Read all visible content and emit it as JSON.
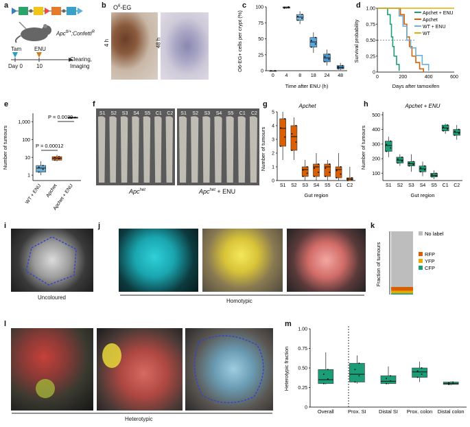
{
  "panels": {
    "a": {
      "label": "a",
      "genotype": "Apc",
      "genotype_sup": "fl/+",
      "genotype_suffix": ";Confetti",
      "genotype_suffix_sup": "R",
      "tam": "Tam",
      "enu": "ENU",
      "day_label": "Day 0",
      "day_value": "10",
      "step": "Clearing,",
      "step2": "Imaging"
    },
    "b": {
      "label": "b",
      "title": "O",
      "title_sup": "6",
      "title_suffix": "-EG",
      "time1": "4 h",
      "time2": "48 h"
    },
    "c": {
      "label": "c"
    },
    "d": {
      "label": "d"
    },
    "e": {
      "label": "e"
    },
    "f": {
      "label": "f",
      "left_caption": "Apc",
      "left_caption_sup": "het",
      "right_caption": "Apc",
      "right_caption_sup": "het",
      "right_caption_suffix": " + ENU",
      "regions": [
        "S1",
        "S2",
        "S3",
        "S4",
        "S5",
        "C1",
        "C2"
      ]
    },
    "g": {
      "label": "g"
    },
    "h": {
      "label": "h"
    },
    "i": {
      "label": "i",
      "caption": "Uncoloured"
    },
    "j": {
      "label": "j",
      "caption": "Homotypic"
    },
    "k": {
      "label": "k"
    },
    "l": {
      "label": "l",
      "caption": "Heterotypic"
    },
    "m": {
      "label": "m"
    }
  },
  "chart_data": [
    {
      "id": "c",
      "type": "box",
      "ylabel": "O6-EG+ cells per crypt (%)",
      "xlabel": "Time after ENU (h)",
      "categories": [
        "0",
        "4",
        "8",
        "18",
        "24",
        "48"
      ],
      "yticks": [
        0,
        25,
        50,
        75,
        100
      ],
      "ylim": [
        0,
        100
      ],
      "medians": [
        0,
        99,
        84,
        45,
        20,
        5
      ],
      "q1": [
        0,
        98,
        79,
        37,
        14,
        3
      ],
      "q3": [
        0,
        100,
        88,
        52,
        26,
        8
      ],
      "min": [
        0,
        97,
        73,
        28,
        8,
        1
      ],
      "max": [
        0,
        100,
        93,
        60,
        33,
        12
      ],
      "colors": [
        "#ffffff",
        "#b9d9f0",
        "#7ab8e0",
        "#5aa6d6",
        "#4a98cf",
        "#3a8cc8"
      ]
    },
    {
      "id": "d",
      "type": "line",
      "ylabel": "Survival probability",
      "xlabel": "Days after tamoxifen",
      "xticks": [
        0,
        200,
        400,
        600
      ],
      "yticks": [
        "0",
        "0.25",
        "0.50",
        "0.75",
        "1.00"
      ],
      "xlim": [
        0,
        600
      ],
      "ylim": [
        0,
        1
      ],
      "series": [
        {
          "name": "Apchet + ENU",
          "color": "#1b9e77",
          "points": [
            [
              0,
              1
            ],
            [
              60,
              1
            ],
            [
              80,
              0.9
            ],
            [
              100,
              0.75
            ],
            [
              110,
              0.55
            ],
            [
              120,
              0.4
            ],
            [
              130,
              0.25
            ],
            [
              150,
              0.12
            ],
            [
              170,
              0.02
            ]
          ]
        },
        {
          "name": "Apchet",
          "color": "#d95f02",
          "points": [
            [
              0,
              1
            ],
            [
              150,
              1
            ],
            [
              180,
              0.9
            ],
            [
              210,
              0.75
            ],
            [
              230,
              0.55
            ],
            [
              250,
              0.4
            ],
            [
              270,
              0.25
            ],
            [
              300,
              0.15
            ],
            [
              330,
              0.05
            ],
            [
              360,
              0
            ]
          ]
        },
        {
          "name": "WT + ENU",
          "color": "#6baed6",
          "points": [
            [
              0,
              1
            ],
            [
              140,
              1
            ],
            [
              170,
              0.88
            ],
            [
              200,
              0.72
            ],
            [
              230,
              0.5
            ],
            [
              260,
              0.38
            ],
            [
              300,
              0.26
            ],
            [
              350,
              0.12
            ],
            [
              400,
              0.02
            ]
          ]
        },
        {
          "name": "WT",
          "color": "#e6ab02",
          "points": [
            [
              0,
              1
            ],
            [
              600,
              1
            ]
          ]
        }
      ]
    },
    {
      "id": "e",
      "type": "box",
      "ylabel": "Number of tumours",
      "categories": [
        "WT + ENU",
        "Apchet",
        "Apchet + ENU"
      ],
      "yticks": [
        "1",
        "10",
        "100",
        "1,000"
      ],
      "scale": "log",
      "ylim": [
        0.5,
        3000
      ],
      "medians": [
        2.5,
        9,
        1700
      ],
      "q1": [
        1.5,
        7,
        1600
      ],
      "q3": [
        3.5,
        11,
        1800
      ],
      "min": [
        1,
        6,
        1550
      ],
      "max": [
        6,
        14,
        1850
      ],
      "colors": [
        "#6baed6",
        "#d95f02",
        "#1b9e77"
      ],
      "annotations": [
        "P = 0.00012",
        "P = 0.0039"
      ]
    },
    {
      "id": "g",
      "type": "box",
      "title": "Apchet",
      "ylabel": "Number of tumours",
      "xlabel": "Gut region",
      "categories": [
        "S1",
        "S2",
        "S3",
        "S4",
        "S5",
        "C1",
        "C2"
      ],
      "yticks": [
        0,
        1,
        2,
        3,
        4,
        5
      ],
      "ylim": [
        0,
        5
      ],
      "medians": [
        3.8,
        3.2,
        0.8,
        1,
        1,
        0.8,
        0.1
      ],
      "q1": [
        2.5,
        2.2,
        0.3,
        0.3,
        0.3,
        0.2,
        0
      ],
      "q3": [
        4.5,
        4,
        1,
        1.2,
        1.2,
        1,
        0.2
      ],
      "min": [
        1.5,
        1.5,
        0,
        0,
        0,
        0,
        0
      ],
      "max": [
        5,
        4.6,
        1.5,
        2,
        1.5,
        2,
        1
      ],
      "color": "#d95f02"
    },
    {
      "id": "h",
      "type": "box",
      "title": "Apchet + ENU",
      "ylabel": "Number of tumours",
      "xlabel": "Gut region",
      "categories": [
        "S1",
        "S2",
        "S3",
        "S4",
        "S5",
        "C1",
        "C2"
      ],
      "yticks": [
        100,
        200,
        300,
        400,
        500
      ],
      "ylim": [
        50,
        520
      ],
      "medians": [
        290,
        190,
        165,
        130,
        85,
        410,
        380
      ],
      "q1": [
        250,
        170,
        150,
        110,
        75,
        390,
        360
      ],
      "q3": [
        320,
        210,
        180,
        150,
        100,
        430,
        400
      ],
      "min": [
        210,
        150,
        110,
        80,
        60,
        370,
        330
      ],
      "max": [
        350,
        230,
        230,
        180,
        120,
        440,
        430
      ],
      "color": "#1b9e77"
    },
    {
      "id": "k",
      "type": "stacked-bar",
      "ylabel": "Fraction of tumours",
      "segments": [
        {
          "name": "CFP",
          "value": 0.02,
          "color": "#1b9e77"
        },
        {
          "name": "YFP",
          "value": 0.04,
          "color": "#e6ab02"
        },
        {
          "name": "RFP",
          "value": 0.06,
          "color": "#d95f02"
        },
        {
          "name": "No label",
          "value": 0.88,
          "color": "#bdbdbd"
        }
      ],
      "legend": [
        "No label",
        "RFP",
        "YFP",
        "CFP"
      ]
    },
    {
      "id": "m",
      "type": "box",
      "ylabel": "Heterotypic fraction",
      "categories": [
        "Overall",
        "Prox. SI",
        "Distal SI",
        "Prox. colon",
        "Distal colon"
      ],
      "yticks": [
        "0",
        "0.25",
        "0.50",
        "0.75",
        "1.00"
      ],
      "ylim": [
        0,
        1
      ],
      "medians": [
        0.35,
        0.42,
        0.33,
        0.45,
        0.3
      ],
      "q1": [
        0.3,
        0.32,
        0.3,
        0.38,
        0.29
      ],
      "q3": [
        0.48,
        0.56,
        0.4,
        0.5,
        0.32
      ],
      "min": [
        0.29,
        0.3,
        0.29,
        0.32,
        0.28
      ],
      "max": [
        0.7,
        0.66,
        0.52,
        0.58,
        0.33
      ],
      "color": "#1b9e77"
    }
  ]
}
